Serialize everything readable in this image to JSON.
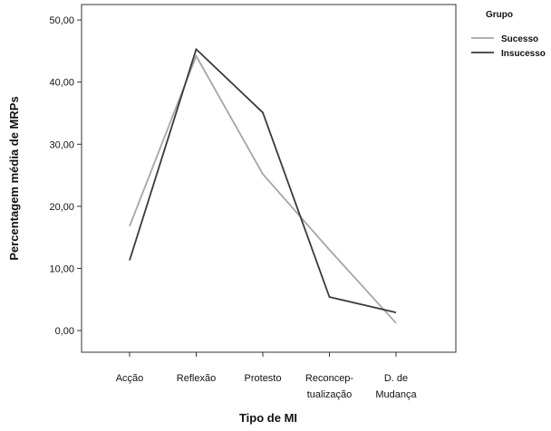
{
  "chart_data": {
    "type": "line",
    "title": "",
    "xlabel": "Tipo de MI",
    "ylabel": "Percentagem média de MRPs",
    "categories": [
      [
        "Acção"
      ],
      [
        "Reflexão"
      ],
      [
        "Protesto"
      ],
      [
        "Reconcep-",
        "tualização"
      ],
      [
        "D. de",
        "Mudança"
      ]
    ],
    "y_ticks": [
      "0,00",
      "10,00",
      "20,00",
      "30,00",
      "40,00",
      "50,00"
    ],
    "ylim": [
      -3.5,
      52.5
    ],
    "grid": false,
    "legend": {
      "title": "Grupo",
      "placement": "top-right"
    },
    "series": [
      {
        "name": "Sucesso",
        "color": "#a6a6a6",
        "values": [
          16.8,
          44.2,
          25.2,
          13.0,
          1.2
        ]
      },
      {
        "name": "Insucesso",
        "color": "#3a3a3a",
        "values": [
          11.3,
          45.3,
          35.1,
          5.4,
          2.9
        ]
      }
    ]
  }
}
